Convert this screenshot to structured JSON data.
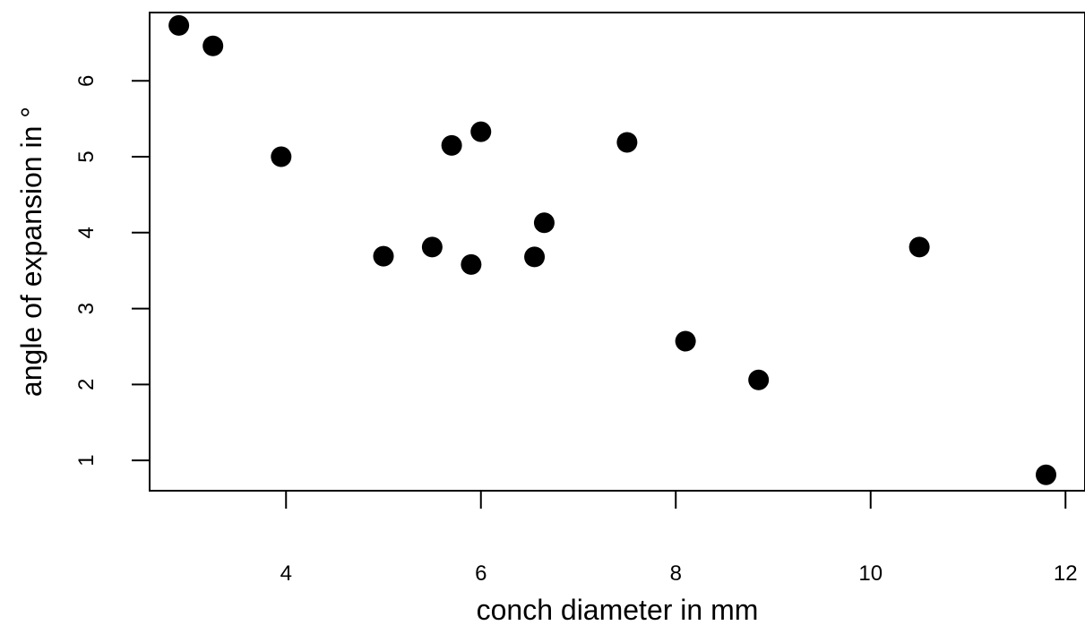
{
  "chart_data": {
    "type": "scatter",
    "title": "",
    "xlabel": "conch diameter in mm",
    "ylabel": "angle of expansion in °",
    "xlim": [
      2.6,
      12.2
    ],
    "ylim": [
      0.6,
      6.9
    ],
    "xticks": [
      4,
      6,
      8,
      10,
      12
    ],
    "yticks": [
      1,
      2,
      3,
      4,
      5,
      6
    ],
    "grid": false,
    "legend": "none",
    "point_color": "#000000",
    "points": [
      {
        "x": 2.9,
        "y": 6.73
      },
      {
        "x": 3.25,
        "y": 6.46
      },
      {
        "x": 3.95,
        "y": 5.0
      },
      {
        "x": 5.0,
        "y": 3.69
      },
      {
        "x": 5.5,
        "y": 3.81
      },
      {
        "x": 5.7,
        "y": 5.15
      },
      {
        "x": 5.9,
        "y": 3.58
      },
      {
        "x": 6.0,
        "y": 5.33
      },
      {
        "x": 6.55,
        "y": 3.68
      },
      {
        "x": 6.65,
        "y": 4.13
      },
      {
        "x": 7.5,
        "y": 5.19
      },
      {
        "x": 8.1,
        "y": 2.57
      },
      {
        "x": 8.85,
        "y": 2.06
      },
      {
        "x": 10.5,
        "y": 3.81
      },
      {
        "x": 11.8,
        "y": 0.81
      }
    ]
  }
}
